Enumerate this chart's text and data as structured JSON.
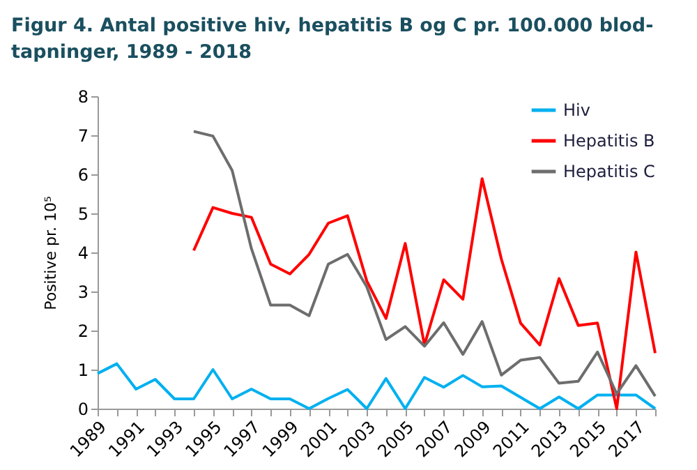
{
  "chart_data": {
    "type": "line",
    "title": "Figur 4. Antal positive hiv, hepatitis B og C pr. 100.000 blod-\ntapninger, 1989 - 2018",
    "ylabel": "Positive pr. 10⁵",
    "categories": [
      "1989",
      null,
      "1991",
      null,
      "1993",
      null,
      "1995",
      null,
      "1997",
      null,
      "1999",
      null,
      "2001",
      null,
      "2003",
      null,
      "2005",
      null,
      "2007",
      null,
      "2009",
      null,
      "2011",
      null,
      "2013",
      null,
      "2015",
      null,
      "2017",
      null
    ],
    "series": [
      {
        "name": "Hiv",
        "color": "#00b0f0",
        "values": [
          0.9,
          1.15,
          0.5,
          0.75,
          0.25,
          0.25,
          1.0,
          0.25,
          0.5,
          0.25,
          0.25,
          0,
          0.26,
          0.49,
          0,
          0.77,
          0,
          0.8,
          0.55,
          0.85,
          0.56,
          0.58,
          0.29,
          0,
          0.3,
          0,
          0.35,
          0.35,
          0.35,
          0
        ]
      },
      {
        "name": "Hepatitis B",
        "color": "#ff0000",
        "values": [
          null,
          null,
          null,
          null,
          null,
          4.05,
          5.15,
          5.0,
          4.9,
          3.7,
          3.45,
          3.95,
          4.75,
          4.94,
          3.27,
          2.31,
          4.23,
          1.63,
          3.3,
          2.8,
          5.89,
          3.83,
          2.19,
          1.63,
          3.33,
          2.13,
          2.19,
          0,
          4.01,
          1.42
        ]
      },
      {
        "name": "Hepatitis C",
        "color": "#6d6d6d",
        "values": [
          null,
          null,
          null,
          null,
          null,
          7.1,
          6.98,
          6.1,
          4.1,
          2.65,
          2.65,
          2.38,
          3.7,
          3.95,
          3.12,
          1.77,
          2.1,
          1.6,
          2.2,
          1.39,
          2.23,
          0.86,
          1.24,
          1.31,
          0.65,
          0.7,
          1.45,
          0.38,
          1.1,
          0.32
        ]
      }
    ],
    "ylim": [
      0,
      8
    ],
    "yticks": [
      0,
      1,
      2,
      3,
      4,
      5,
      6,
      7,
      8
    ],
    "legend": "top right"
  }
}
